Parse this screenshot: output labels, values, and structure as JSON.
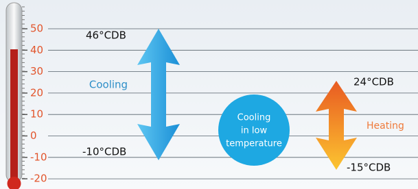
{
  "scale": {
    "labels": [
      "50",
      "40",
      "30",
      "20",
      "10",
      "0",
      "-10",
      "-20"
    ]
  },
  "cooling": {
    "max": "46°CDB",
    "min": "-10°CDB",
    "label": "Cooling"
  },
  "low_temp": {
    "lines": [
      "Cooling",
      "in low",
      "temperature"
    ]
  },
  "heating": {
    "max": "24°CDB",
    "min": "-15°CDB",
    "label": "Heating"
  }
}
